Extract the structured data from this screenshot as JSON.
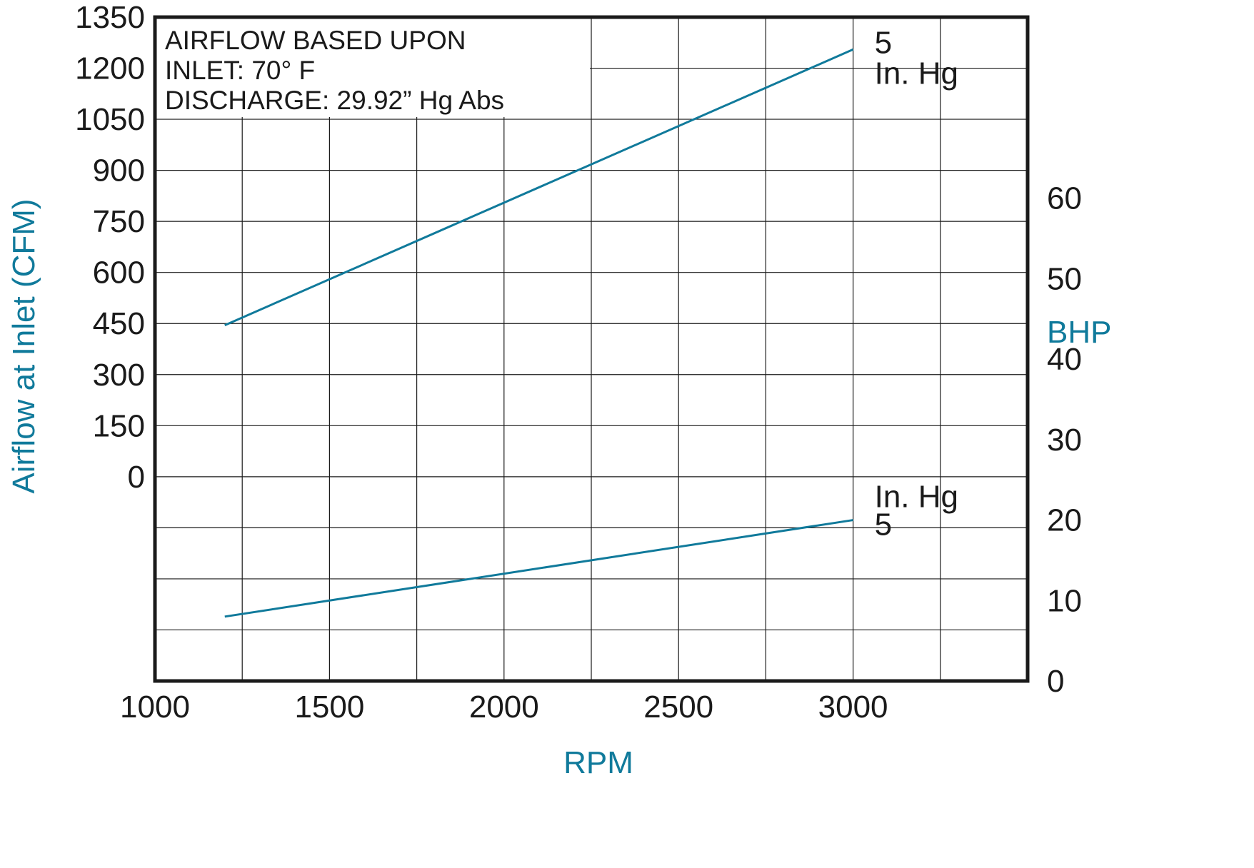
{
  "chart_data": {
    "type": "line",
    "x_axis": {
      "title": "RPM",
      "range": [
        1000,
        3500
      ],
      "tick_labels": [
        "1000",
        "1500",
        "2000",
        "2500",
        "3000"
      ],
      "tick_values": [
        1000,
        1500,
        2000,
        2500,
        3000
      ],
      "grid_values": [
        1250,
        1500,
        1750,
        2000,
        2250,
        2500,
        2750,
        3000,
        3250
      ]
    },
    "y_left": {
      "title": "Airflow at Inlet (CFM)",
      "range": [
        -600,
        1350
      ],
      "tick_labels": [
        "1350",
        "1200",
        "1050",
        "900",
        "750",
        "600",
        "450",
        "300",
        "150",
        "0"
      ],
      "tick_values": [
        1350,
        1200,
        1050,
        900,
        750,
        600,
        450,
        300,
        150,
        0
      ],
      "grid_values": [
        1200,
        1050,
        900,
        750,
        600,
        450,
        300,
        150,
        0,
        -150,
        -300,
        -450
      ]
    },
    "y_right": {
      "title": "BHP",
      "range": [
        0,
        82.5
      ],
      "tick_labels": [
        "60",
        "50",
        "40",
        "30",
        "20",
        "10",
        "0"
      ],
      "tick_values": [
        60,
        50,
        40,
        30,
        20,
        10,
        0
      ]
    },
    "grid": true,
    "series": [
      {
        "axis": "left",
        "label_value": "5",
        "label_unit": "In. Hg",
        "x": [
          1200,
          3000
        ],
        "y": [
          445,
          1255
        ]
      },
      {
        "axis": "right",
        "label_value": "5",
        "label_unit": "In. Hg",
        "x": [
          1200,
          3000
        ],
        "y": [
          8,
          20
        ]
      }
    ],
    "annotation": {
      "lines": [
        "AIRFLOW BASED UPON",
        "INLET:  70° F",
        "DISCHARGE:  29.92” Hg Abs"
      ]
    },
    "colors": {
      "accent": "#107a9b",
      "text": "#1a1a1a",
      "frame": "#1a1a1a"
    }
  }
}
